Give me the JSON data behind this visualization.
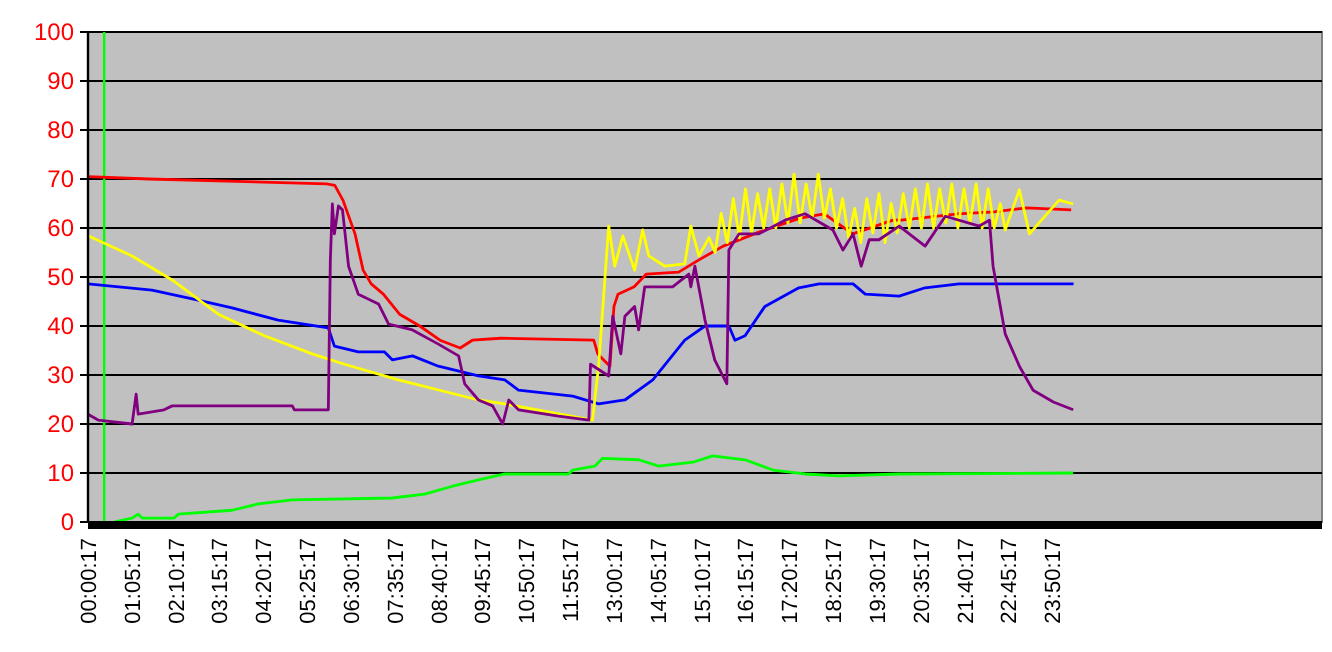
{
  "chart_data": {
    "type": "line",
    "xlim": [
      0,
      30.5
    ],
    "ylim": [
      0,
      100
    ],
    "yticks": [
      0,
      10,
      20,
      30,
      40,
      50,
      60,
      70,
      80,
      90,
      100
    ],
    "xticks": [
      {
        "value": 0.0047,
        "label": "00:00:17"
      },
      {
        "value": 1.0881,
        "label": "01:05:17"
      },
      {
        "value": 2.1714,
        "label": "02:10:17"
      },
      {
        "value": 3.2547,
        "label": "03:15:17"
      },
      {
        "value": 4.3381,
        "label": "04:20:17"
      },
      {
        "value": 5.4214,
        "label": "05:25:17"
      },
      {
        "value": 6.5047,
        "label": "06:30:17"
      },
      {
        "value": 7.5881,
        "label": "07:35:17"
      },
      {
        "value": 8.6714,
        "label": "08:40:17"
      },
      {
        "value": 9.7547,
        "label": "09:45:17"
      },
      {
        "value": 10.8381,
        "label": "10:50:17"
      },
      {
        "value": 11.9214,
        "label": "11:55:17"
      },
      {
        "value": 13.0047,
        "label": "13:00:17"
      },
      {
        "value": 14.0881,
        "label": "14:05:17"
      },
      {
        "value": 15.1714,
        "label": "15:10:17"
      },
      {
        "value": 16.2547,
        "label": "16:15:17"
      },
      {
        "value": 17.3381,
        "label": "17:20:17"
      },
      {
        "value": 18.4214,
        "label": "18:25:17"
      },
      {
        "value": 19.5047,
        "label": "19:30:17"
      },
      {
        "value": 20.5881,
        "label": "20:35:17"
      },
      {
        "value": 21.6714,
        "label": "21:40:17"
      },
      {
        "value": 22.7547,
        "label": "22:45:17"
      },
      {
        "value": 23.8381,
        "label": "23:50:17"
      }
    ],
    "grid": "y",
    "marker": "none",
    "line_style": "solid",
    "ref_lines": [
      {
        "axis": "x",
        "value": 0.4,
        "color": "#00ff00"
      }
    ],
    "series": [
      {
        "color": "#ff0000",
        "x": [
          0,
          1.5,
          5.9,
          6.1,
          6.3,
          6.6,
          6.8,
          7.0,
          7.3,
          7.7,
          8.2,
          8.7,
          9.2,
          9.5,
          10.2,
          12.5,
          12.6,
          12.9,
          13.0,
          13.1,
          13.5,
          13.8,
          14.6,
          15.1,
          15.7,
          16.6,
          17.6,
          18.2,
          18.9,
          19.9,
          20.1,
          21.5,
          22.4,
          23.2,
          24.3
        ],
        "values": [
          70.5,
          70,
          69,
          68.7,
          65.7,
          58.8,
          51.4,
          48.6,
          46.5,
          42.4,
          40,
          37.1,
          35.5,
          37.1,
          37.5,
          37.1,
          34.3,
          31.8,
          44,
          46.5,
          48,
          50.6,
          51,
          53.5,
          56.3,
          59.2,
          62,
          62.9,
          58.8,
          61.6,
          61.6,
          62.9,
          63.3,
          64.1,
          63.7
        ]
      },
      {
        "color": "#0000ff",
        "x": [
          0,
          1.58,
          2.72,
          3.56,
          4.7,
          5.94,
          6.09,
          6.68,
          7.33,
          7.52,
          8.02,
          8.66,
          9.65,
          10.3,
          10.64,
          11.98,
          12.62,
          13.27,
          13.96,
          14.75,
          15.25,
          15.84,
          15.99,
          16.24,
          16.73,
          17.57,
          18.07,
          18.91,
          19.21,
          20.05,
          20.69,
          21.53,
          24.36
        ],
        "values": [
          48.6,
          47.3,
          45.3,
          43.7,
          41.2,
          39.6,
          35.9,
          34.7,
          34.7,
          33.1,
          33.9,
          31.8,
          29.8,
          29,
          26.9,
          25.7,
          24.1,
          24.9,
          29,
          37.1,
          40,
          40,
          37.1,
          38,
          44,
          47.8,
          48.6,
          48.6,
          46.5,
          46.1,
          47.8,
          48.6,
          48.6
        ]
      },
      {
        "color": "#ffff00",
        "x": [
          0,
          1.09,
          2.08,
          3.22,
          4.36,
          5.54,
          6.34,
          7.67,
          9.65,
          10.3,
          12.47,
          12.62,
          12.87,
          13.02,
          13.22,
          13.51,
          13.71,
          13.86,
          14.26,
          14.75,
          14.9,
          15.1,
          15.35,
          15.5,
          15.65,
          15.8,
          15.95,
          16.1,
          16.25,
          16.4,
          16.55,
          16.7,
          16.85,
          17.0,
          17.15,
          17.3,
          17.45,
          17.6,
          17.75,
          17.9,
          18.05,
          18.2,
          18.35,
          18.5,
          18.65,
          18.8,
          18.95,
          19.1,
          19.25,
          19.4,
          19.55,
          19.7,
          19.85,
          20.0,
          20.15,
          20.3,
          20.45,
          20.6,
          20.75,
          20.9,
          21.05,
          21.2,
          21.35,
          21.5,
          21.65,
          21.8,
          21.95,
          22.1,
          22.25,
          22.4,
          22.55,
          22.67,
          23.02,
          23.27,
          23.61,
          24.0,
          24.35
        ],
        "values": [
          58.4,
          54.3,
          49.4,
          42.4,
          38,
          34.3,
          32.2,
          29,
          24.9,
          24.1,
          20.8,
          31.8,
          60.4,
          52.2,
          58.4,
          51.4,
          59.6,
          54.3,
          52.2,
          52.7,
          60.4,
          54.3,
          58,
          55,
          63,
          57,
          66,
          58,
          68,
          59,
          67,
          60,
          68,
          60,
          69,
          61,
          71,
          61,
          69,
          62,
          71,
          62,
          68,
          60,
          66,
          58,
          64,
          57,
          66,
          59,
          67,
          57,
          65,
          59,
          67,
          60,
          68,
          60,
          69,
          60,
          68,
          61,
          69,
          60,
          68,
          61,
          69,
          60,
          68,
          60,
          65,
          59.6,
          67.8,
          58.8,
          62,
          65.7,
          64.9
        ]
      },
      {
        "color": "#800080",
        "x": [
          0,
          0.25,
          1.09,
          1.19,
          1.24,
          1.88,
          2.08,
          5.05,
          5.1,
          5.94,
          5.99,
          6.04,
          6.09,
          6.19,
          6.29,
          6.44,
          6.68,
          7.18,
          7.43,
          8.02,
          8.66,
          9.16,
          9.31,
          9.65,
          10.0,
          10.25,
          10.4,
          10.64,
          11.63,
          12.38,
          12.42,
          12.87,
          12.97,
          13.17,
          13.27,
          13.51,
          13.61,
          13.76,
          14.45,
          14.85,
          14.9,
          15.0,
          15.25,
          15.49,
          15.79,
          15.84,
          16.09,
          16.58,
          17.23,
          17.72,
          18.41,
          18.66,
          18.91,
          19.11,
          19.31,
          19.55,
          20.05,
          20.69,
          21.19,
          22.03,
          22.28,
          22.37,
          22.52,
          22.67,
          23.02,
          23.36,
          23.86,
          24.35
        ],
        "values": [
          22,
          20.8,
          20,
          26.1,
          22,
          22.9,
          23.7,
          23.7,
          22.9,
          22.9,
          53.5,
          64.9,
          58.8,
          64.5,
          63.7,
          52.2,
          46.5,
          44.5,
          40.4,
          39.2,
          36.3,
          33.9,
          28.2,
          24.9,
          23.7,
          20,
          24.9,
          22.9,
          21.6,
          20.8,
          32.2,
          29.8,
          42,
          34.3,
          42,
          44,
          39.2,
          48,
          48,
          50.6,
          48,
          52.2,
          41.2,
          33.1,
          28.2,
          55.5,
          58.8,
          58.8,
          61.6,
          62.9,
          59.6,
          55.5,
          58.8,
          52.2,
          57.6,
          57.6,
          60.4,
          56.3,
          62.4,
          60.4,
          61.6,
          52.2,
          45.3,
          38.4,
          31.8,
          26.9,
          24.5,
          22.9
        ]
      },
      {
        "color": "#00ff00",
        "x": [
          0.64,
          1.09,
          1.24,
          1.34,
          2.13,
          2.23,
          3.56,
          4.21,
          5.05,
          7.52,
          8.32,
          9.01,
          9.65,
          10.3,
          11.88,
          11.98,
          12.52,
          12.72,
          13.61,
          14.11,
          14.95,
          15.44,
          16.24,
          16.93,
          17.72,
          18.56,
          20.05,
          24.35
        ],
        "values": [
          0,
          0.8,
          1.6,
          0.8,
          0.8,
          1.6,
          2.4,
          3.7,
          4.5,
          4.9,
          5.7,
          7.3,
          8.6,
          9.8,
          9.8,
          10.6,
          11.4,
          13,
          12.7,
          11.4,
          12.2,
          13.5,
          12.7,
          10.6,
          9.8,
          9.4,
          9.8,
          10
        ]
      }
    ]
  }
}
